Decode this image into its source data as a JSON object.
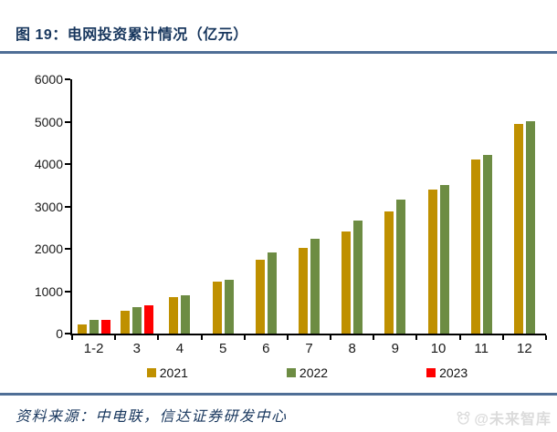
{
  "figure": {
    "title": "图 19：电网投资累计情况（亿元）"
  },
  "chart_data": {
    "type": "bar",
    "title": "电网投资累计情况（亿元）",
    "categories": [
      "1-2",
      "3",
      "4",
      "5",
      "6",
      "7",
      "8",
      "9",
      "10",
      "11",
      "12"
    ],
    "series": [
      {
        "name": "2021",
        "color": "#BF9000",
        "values": [
          224,
          540,
          857,
          1225,
          1734,
          2029,
          2409,
          2891,
          3408,
          4102,
          4951
        ]
      },
      {
        "name": "2022",
        "color": "#6D8C43",
        "values": [
          313,
          621,
          893,
          1263,
          1905,
          2239,
          2667,
          3154,
          3511,
          4209,
          5012
        ]
      },
      {
        "name": "2023",
        "color": "#FF0000",
        "values": [
          319,
          668,
          null,
          null,
          null,
          null,
          null,
          null,
          null,
          null,
          null
        ]
      }
    ],
    "xlabel": "",
    "ylabel": "",
    "ylim": [
      0,
      6000
    ],
    "yticks": [
      0,
      1000,
      2000,
      3000,
      4000,
      5000,
      6000
    ],
    "grid": false,
    "legend_position": "bottom"
  },
  "footer": {
    "source": "资料来源：中电联，信达证券研发中心",
    "watermark": "@未来智库"
  },
  "colors": {
    "title_text": "#17365D",
    "accent_rule": "#4F6E96",
    "axis": "#000000",
    "watermark": "#DBDBDB"
  }
}
